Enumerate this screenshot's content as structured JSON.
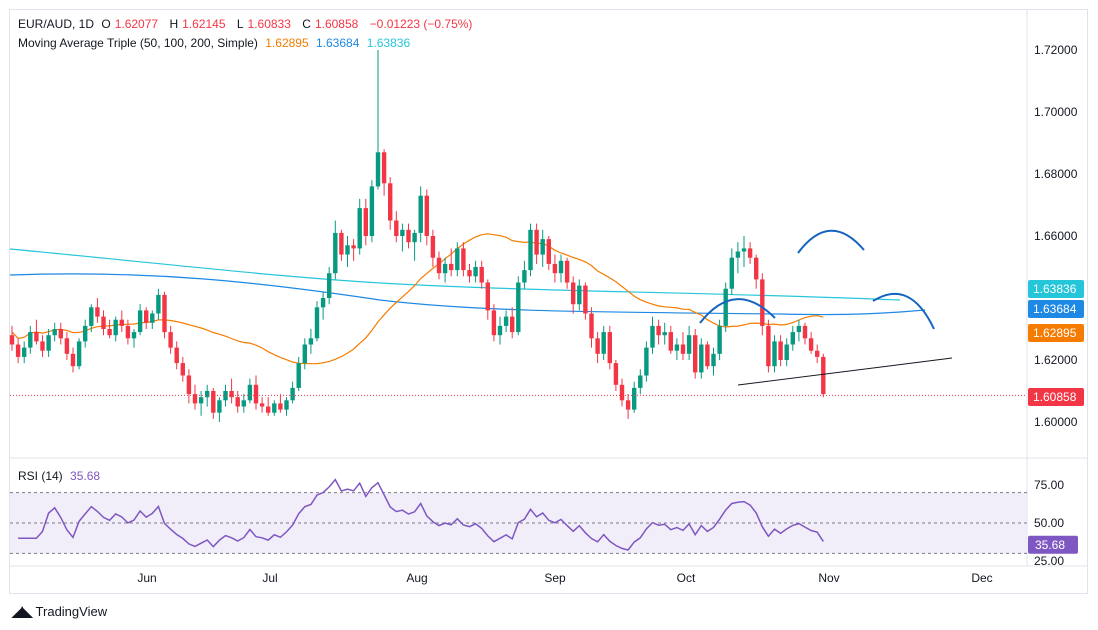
{
  "header": {
    "symbol": "EUR/AUD, 1D",
    "o_label": "O",
    "open": "1.62077",
    "h_label": "H",
    "high": "1.62145",
    "l_label": "L",
    "low": "1.60833",
    "c_label": "C",
    "close": "1.60858",
    "change": "−0.01223 (−0.75%)"
  },
  "ma_legend": {
    "label": "Moving Average Triple (50, 100, 200, Simple)",
    "v50": "1.62895",
    "v100": "1.63684",
    "v200": "1.63836"
  },
  "rsi_legend": {
    "label": "RSI (14)",
    "value": "35.68"
  },
  "colors": {
    "up": "#089981",
    "down": "#f23645",
    "ma50": "#f57c00",
    "ma100": "#1e88e5",
    "ma200": "#26c6da",
    "rsi": "#7e57c2",
    "rsi_band": "#ede7f6",
    "pattern": "#1565c0",
    "neckline": "#131722"
  },
  "footer": {
    "brand": "TradingView"
  },
  "chart_data": [
    {
      "type": "candlestick",
      "x_labels": [
        "Jun",
        "Jul",
        "Aug",
        "Sep",
        "Oct",
        "Nov",
        "Dec"
      ],
      "y_ticks": [
        "1.72000",
        "1.70000",
        "1.68000",
        "1.66000",
        "1.62000",
        "1.60000"
      ],
      "ylim": [
        1.59,
        1.73
      ],
      "price_labels": [
        {
          "value": "1.63836",
          "color": "#26c6da"
        },
        {
          "value": "1.63684",
          "color": "#1e88e5"
        },
        {
          "value": "1.62895",
          "color": "#f57c00"
        },
        {
          "value": "1.60858",
          "color": "#f23645"
        }
      ],
      "last_price": 1.60858,
      "candles": [
        [
          1.628,
          1.631,
          1.623,
          1.625
        ],
        [
          1.625,
          1.627,
          1.619,
          1.621
        ],
        [
          1.621,
          1.626,
          1.619,
          1.624
        ],
        [
          1.624,
          1.631,
          1.622,
          1.629
        ],
        [
          1.629,
          1.633,
          1.625,
          1.626
        ],
        [
          1.626,
          1.628,
          1.621,
          1.623
        ],
        [
          1.623,
          1.63,
          1.621,
          1.628
        ],
        [
          1.628,
          1.632,
          1.626,
          1.63
        ],
        [
          1.63,
          1.632,
          1.625,
          1.627
        ],
        [
          1.627,
          1.629,
          1.62,
          1.622
        ],
        [
          1.622,
          1.624,
          1.616,
          1.618
        ],
        [
          1.618,
          1.627,
          1.617,
          1.626
        ],
        [
          1.626,
          1.633,
          1.624,
          1.631
        ],
        [
          1.631,
          1.638,
          1.629,
          1.637
        ],
        [
          1.637,
          1.64,
          1.632,
          1.634
        ],
        [
          1.634,
          1.636,
          1.628,
          1.63
        ],
        [
          1.63,
          1.633,
          1.627,
          1.628
        ],
        [
          1.628,
          1.634,
          1.626,
          1.633
        ],
        [
          1.633,
          1.636,
          1.629,
          1.631
        ],
        [
          1.631,
          1.633,
          1.625,
          1.627
        ],
        [
          1.627,
          1.63,
          1.624,
          1.629
        ],
        [
          1.629,
          1.638,
          1.628,
          1.636
        ],
        [
          1.636,
          1.637,
          1.63,
          1.632
        ],
        [
          1.632,
          1.636,
          1.63,
          1.635
        ],
        [
          1.635,
          1.643,
          1.633,
          1.641
        ],
        [
          1.641,
          1.642,
          1.627,
          1.629
        ],
        [
          1.629,
          1.631,
          1.622,
          1.624
        ],
        [
          1.624,
          1.626,
          1.617,
          1.619
        ],
        [
          1.619,
          1.621,
          1.613,
          1.615
        ],
        [
          1.615,
          1.617,
          1.606,
          1.609
        ],
        [
          1.609,
          1.612,
          1.604,
          1.606
        ],
        [
          1.606,
          1.61,
          1.602,
          1.608
        ],
        [
          1.608,
          1.612,
          1.605,
          1.61
        ],
        [
          1.61,
          1.611,
          1.601,
          1.603
        ],
        [
          1.603,
          1.608,
          1.6,
          1.607
        ],
        [
          1.607,
          1.612,
          1.605,
          1.61
        ],
        [
          1.61,
          1.614,
          1.606,
          1.608
        ],
        [
          1.608,
          1.61,
          1.603,
          1.605
        ],
        [
          1.605,
          1.609,
          1.603,
          1.607
        ],
        [
          1.607,
          1.614,
          1.606,
          1.612
        ],
        [
          1.612,
          1.615,
          1.604,
          1.606
        ],
        [
          1.606,
          1.608,
          1.603,
          1.605
        ],
        [
          1.605,
          1.608,
          1.602,
          1.603
        ],
        [
          1.603,
          1.607,
          1.602,
          1.606
        ],
        [
          1.606,
          1.609,
          1.603,
          1.604
        ],
        [
          1.604,
          1.608,
          1.602,
          1.607
        ],
        [
          1.607,
          1.613,
          1.606,
          1.611
        ],
        [
          1.611,
          1.621,
          1.61,
          1.619
        ],
        [
          1.619,
          1.627,
          1.617,
          1.625
        ],
        [
          1.625,
          1.63,
          1.622,
          1.627
        ],
        [
          1.627,
          1.639,
          1.626,
          1.637
        ],
        [
          1.637,
          1.642,
          1.633,
          1.64
        ],
        [
          1.64,
          1.65,
          1.638,
          1.648
        ],
        [
          1.648,
          1.665,
          1.646,
          1.661
        ],
        [
          1.661,
          1.662,
          1.652,
          1.654
        ],
        [
          1.654,
          1.66,
          1.65,
          1.657
        ],
        [
          1.657,
          1.659,
          1.652,
          1.656
        ],
        [
          1.656,
          1.672,
          1.654,
          1.669
        ],
        [
          1.669,
          1.672,
          1.657,
          1.66
        ],
        [
          1.66,
          1.678,
          1.658,
          1.676
        ],
        [
          1.676,
          1.72,
          1.675,
          1.687
        ],
        [
          1.687,
          1.688,
          1.673,
          1.677
        ],
        [
          1.677,
          1.679,
          1.662,
          1.665
        ],
        [
          1.665,
          1.668,
          1.658,
          1.66
        ],
        [
          1.66,
          1.664,
          1.655,
          1.662
        ],
        [
          1.662,
          1.664,
          1.656,
          1.658
        ],
        [
          1.658,
          1.662,
          1.652,
          1.661
        ],
        [
          1.661,
          1.676,
          1.658,
          1.673
        ],
        [
          1.673,
          1.675,
          1.657,
          1.66
        ],
        [
          1.66,
          1.662,
          1.65,
          1.653
        ],
        [
          1.653,
          1.655,
          1.646,
          1.648
        ],
        [
          1.648,
          1.653,
          1.645,
          1.651
        ],
        [
          1.651,
          1.656,
          1.647,
          1.649
        ],
        [
          1.649,
          1.658,
          1.647,
          1.656
        ],
        [
          1.656,
          1.658,
          1.647,
          1.649
        ],
        [
          1.649,
          1.651,
          1.645,
          1.647
        ],
        [
          1.647,
          1.652,
          1.645,
          1.65
        ],
        [
          1.65,
          1.652,
          1.643,
          1.645
        ],
        [
          1.645,
          1.646,
          1.633,
          1.636
        ],
        [
          1.636,
          1.638,
          1.626,
          1.628
        ],
        [
          1.628,
          1.634,
          1.625,
          1.631
        ],
        [
          1.631,
          1.636,
          1.629,
          1.634
        ],
        [
          1.634,
          1.637,
          1.627,
          1.629
        ],
        [
          1.629,
          1.647,
          1.628,
          1.645
        ],
        [
          1.645,
          1.652,
          1.643,
          1.649
        ],
        [
          1.649,
          1.664,
          1.647,
          1.662
        ],
        [
          1.662,
          1.664,
          1.651,
          1.654
        ],
        [
          1.654,
          1.662,
          1.65,
          1.659
        ],
        [
          1.659,
          1.66,
          1.649,
          1.651
        ],
        [
          1.651,
          1.654,
          1.645,
          1.648
        ],
        [
          1.648,
          1.654,
          1.645,
          1.652
        ],
        [
          1.652,
          1.653,
          1.643,
          1.645
        ],
        [
          1.645,
          1.647,
          1.635,
          1.638
        ],
        [
          1.638,
          1.646,
          1.636,
          1.644
        ],
        [
          1.644,
          1.645,
          1.633,
          1.635
        ],
        [
          1.635,
          1.637,
          1.624,
          1.627
        ],
        [
          1.627,
          1.629,
          1.619,
          1.622
        ],
        [
          1.622,
          1.631,
          1.62,
          1.629
        ],
        [
          1.629,
          1.631,
          1.617,
          1.619
        ],
        [
          1.619,
          1.62,
          1.61,
          1.612
        ],
        [
          1.612,
          1.614,
          1.605,
          1.607
        ],
        [
          1.607,
          1.609,
          1.601,
          1.604
        ],
        [
          1.604,
          1.613,
          1.603,
          1.611
        ],
        [
          1.611,
          1.617,
          1.609,
          1.615
        ],
        [
          1.615,
          1.626,
          1.613,
          1.624
        ],
        [
          1.624,
          1.634,
          1.622,
          1.631
        ],
        [
          1.631,
          1.633,
          1.625,
          1.628
        ],
        [
          1.628,
          1.632,
          1.625,
          1.629
        ],
        [
          1.629,
          1.631,
          1.622,
          1.623
        ],
        [
          1.623,
          1.627,
          1.62,
          1.625
        ],
        [
          1.625,
          1.629,
          1.62,
          1.622
        ],
        [
          1.622,
          1.631,
          1.62,
          1.628
        ],
        [
          1.628,
          1.63,
          1.614,
          1.616
        ],
        [
          1.616,
          1.627,
          1.614,
          1.625
        ],
        [
          1.625,
          1.626,
          1.617,
          1.618
        ],
        [
          1.618,
          1.624,
          1.615,
          1.622
        ],
        [
          1.622,
          1.633,
          1.62,
          1.631
        ],
        [
          1.631,
          1.645,
          1.629,
          1.643
        ],
        [
          1.643,
          1.656,
          1.641,
          1.653
        ],
        [
          1.653,
          1.658,
          1.648,
          1.655
        ],
        [
          1.655,
          1.66,
          1.65,
          1.656
        ],
        [
          1.656,
          1.658,
          1.651,
          1.653
        ],
        [
          1.653,
          1.654,
          1.643,
          1.646
        ],
        [
          1.646,
          1.648,
          1.628,
          1.631
        ],
        [
          1.631,
          1.633,
          1.616,
          1.618
        ],
        [
          1.618,
          1.628,
          1.616,
          1.626
        ],
        [
          1.626,
          1.628,
          1.618,
          1.62
        ],
        [
          1.62,
          1.627,
          1.618,
          1.625
        ],
        [
          1.625,
          1.631,
          1.623,
          1.629
        ],
        [
          1.629,
          1.633,
          1.626,
          1.631
        ],
        [
          1.631,
          1.632,
          1.625,
          1.627
        ],
        [
          1.627,
          1.629,
          1.622,
          1.623
        ],
        [
          1.623,
          1.625,
          1.619,
          1.621
        ],
        [
          1.621,
          1.622,
          1.608,
          1.609
        ]
      ]
    },
    {
      "type": "line",
      "ylim": [
        25,
        85
      ],
      "y_ticks": [
        "75.00",
        "50.00",
        "25.00"
      ],
      "band": [
        30,
        70
      ],
      "midline": 50,
      "last_value": 35.68
    }
  ]
}
